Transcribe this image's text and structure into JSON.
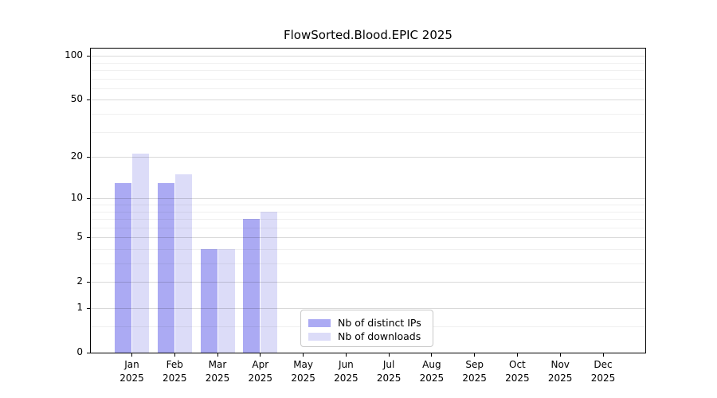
{
  "chart_data": {
    "type": "bar",
    "title": "FlowSorted.Blood.EPIC 2025",
    "categories": [
      "Jan",
      "Feb",
      "Mar",
      "Apr",
      "May",
      "Jun",
      "Jul",
      "Aug",
      "Sep",
      "Oct",
      "Nov",
      "Dec"
    ],
    "year_label": "2025",
    "series": [
      {
        "name": "Nb of distinct IPs",
        "color": "#abaaf3",
        "values": [
          13,
          13,
          4,
          7,
          0,
          0,
          0,
          0,
          0,
          0,
          0,
          0
        ]
      },
      {
        "name": "Nb of downloads",
        "color": "#dcdcf8",
        "values": [
          21,
          15,
          4,
          8,
          0,
          0,
          0,
          0,
          0,
          0,
          0,
          0
        ]
      }
    ],
    "yscale": "log1p",
    "ylim": [
      0,
      112
    ],
    "y_major_ticks": [
      0,
      1,
      2,
      5,
      10,
      20,
      50,
      100
    ],
    "y_minor_ticks": [
      0.5,
      3,
      4,
      6,
      7,
      8,
      9,
      30,
      40,
      60,
      70,
      80,
      90
    ],
    "grid": true,
    "legend_position": "bottom-center-inside",
    "colors": {
      "bar_distinct_ips": "#abaaf3",
      "bar_downloads": "#dcdcf8",
      "grid_major": "#d9d9d9",
      "grid_minor": "#efefef",
      "spine": "#000000",
      "background": "#ffffff"
    }
  }
}
